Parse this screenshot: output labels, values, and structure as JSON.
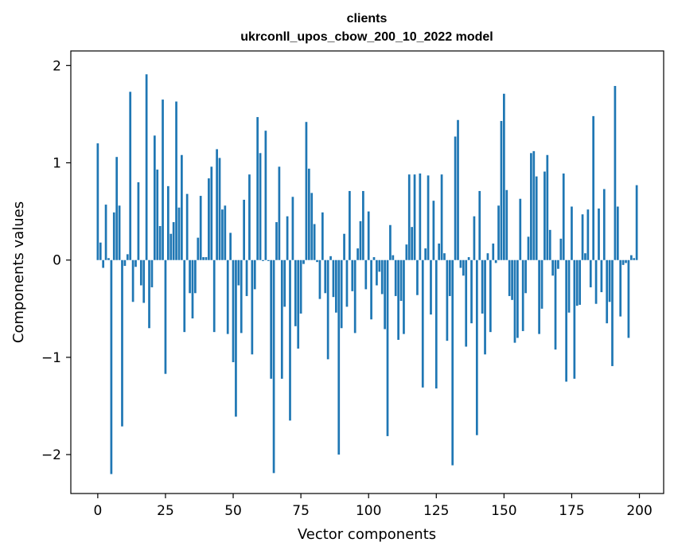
{
  "chart_data": {
    "type": "bar",
    "title": "clients",
    "subtitle": "ukrconll_upos_cbow_200_10_2022 model",
    "xlabel": "Vector components",
    "ylabel": "Components values",
    "xlim": [
      -9.95,
      208.95
    ],
    "ylim": [
      -2.4,
      2.15
    ],
    "xticks": [
      0,
      25,
      50,
      75,
      100,
      125,
      150,
      175,
      200
    ],
    "xtick_labels": [
      "0",
      "25",
      "50",
      "75",
      "100",
      "125",
      "150",
      "175",
      "200"
    ],
    "yticks": [
      -2,
      -1,
      0,
      1,
      2
    ],
    "ytick_labels": [
      "−2",
      "−1",
      "0",
      "1",
      "2"
    ],
    "grid": false,
    "legend": "none",
    "bar_color": "#1f77b4",
    "x": [
      0,
      1,
      2,
      3,
      4,
      5,
      6,
      7,
      8,
      9,
      10,
      11,
      12,
      13,
      14,
      15,
      16,
      17,
      18,
      19,
      20,
      21,
      22,
      23,
      24,
      25,
      26,
      27,
      28,
      29,
      30,
      31,
      32,
      33,
      34,
      35,
      36,
      37,
      38,
      39,
      40,
      41,
      42,
      43,
      44,
      45,
      46,
      47,
      48,
      49,
      50,
      51,
      52,
      53,
      54,
      55,
      56,
      57,
      58,
      59,
      60,
      61,
      62,
      63,
      64,
      65,
      66,
      67,
      68,
      69,
      70,
      71,
      72,
      73,
      74,
      75,
      76,
      77,
      78,
      79,
      80,
      81,
      82,
      83,
      84,
      85,
      86,
      87,
      88,
      89,
      90,
      91,
      92,
      93,
      94,
      95,
      96,
      97,
      98,
      99,
      100,
      101,
      102,
      103,
      104,
      105,
      106,
      107,
      108,
      109,
      110,
      111,
      112,
      113,
      114,
      115,
      116,
      117,
      118,
      119,
      120,
      121,
      122,
      123,
      124,
      125,
      126,
      127,
      128,
      129,
      130,
      131,
      132,
      133,
      134,
      135,
      136,
      137,
      138,
      139,
      140,
      141,
      142,
      143,
      144,
      145,
      146,
      147,
      148,
      149,
      150,
      151,
      152,
      153,
      154,
      155,
      156,
      157,
      158,
      159,
      160,
      161,
      162,
      163,
      164,
      165,
      166,
      167,
      168,
      169,
      170,
      171,
      172,
      173,
      174,
      175,
      176,
      177,
      178,
      179,
      180,
      181,
      182,
      183,
      184,
      185,
      186,
      187,
      188,
      189,
      190,
      191,
      192,
      193,
      194,
      195,
      196,
      197,
      198,
      199
    ],
    "values": [
      1.2,
      0.18,
      -0.08,
      0.57,
      0.02,
      -2.2,
      0.49,
      1.06,
      0.56,
      -1.71,
      -0.06,
      0.06,
      1.73,
      -0.43,
      -0.07,
      0.8,
      -0.26,
      -0.44,
      1.91,
      -0.7,
      -0.28,
      1.28,
      0.93,
      0.35,
      1.65,
      -1.17,
      0.76,
      0.27,
      0.39,
      1.63,
      0.54,
      1.08,
      -0.74,
      0.68,
      -0.34,
      -0.6,
      -0.34,
      0.23,
      0.66,
      0.03,
      0.03,
      0.84,
      0.96,
      -0.74,
      1.14,
      1.05,
      0.52,
      0.56,
      -0.76,
      0.28,
      -1.05,
      -1.61,
      -0.26,
      -0.75,
      0.62,
      -0.37,
      0.88,
      -0.97,
      -0.3,
      1.47,
      1.1,
      -0.01,
      1.33,
      -0.01,
      -1.22,
      -2.19,
      0.39,
      0.96,
      -1.22,
      -0.48,
      0.45,
      -1.65,
      0.65,
      -0.68,
      -0.91,
      -0.55,
      -0.04,
      1.42,
      0.94,
      0.69,
      0.37,
      -0.02,
      -0.4,
      0.49,
      -0.34,
      -1.02,
      0.04,
      -0.38,
      -0.54,
      -2.0,
      -0.7,
      0.27,
      -0.48,
      0.71,
      -0.32,
      -0.75,
      0.12,
      0.4,
      0.71,
      -0.3,
      0.5,
      -0.61,
      0.03,
      -0.26,
      -0.12,
      -0.35,
      -0.71,
      -1.81,
      0.36,
      0.05,
      -0.37,
      -0.82,
      -0.42,
      -0.76,
      0.16,
      0.88,
      0.34,
      0.88,
      -0.36,
      0.89,
      -1.31,
      0.12,
      0.87,
      -0.56,
      0.61,
      -1.32,
      0.17,
      0.88,
      0.07,
      -0.83,
      -0.37,
      -2.11,
      1.27,
      1.44,
      -0.08,
      -0.16,
      -0.89,
      0.03,
      -0.65,
      0.45,
      -1.8,
      0.71,
      -0.55,
      -0.97,
      0.07,
      -0.74,
      0.17,
      -0.03,
      0.56,
      1.43,
      1.71,
      0.72,
      -0.37,
      -0.41,
      -0.85,
      -0.8,
      0.63,
      -0.73,
      -0.34,
      0.24,
      1.1,
      1.12,
      0.86,
      -0.76,
      -0.5,
      0.91,
      1.08,
      0.31,
      -0.16,
      -0.92,
      -0.09,
      0.22,
      0.89,
      -1.25,
      -0.54,
      0.55,
      -1.22,
      -0.47,
      -0.46,
      0.47,
      0.07,
      0.52,
      -0.28,
      1.48,
      -0.45,
      0.53,
      -0.33,
      0.73,
      -0.65,
      -0.43,
      -1.09,
      1.79,
      0.55,
      -0.58,
      -0.05,
      -0.03,
      -0.8,
      0.05,
      0.02,
      0.77
    ]
  }
}
